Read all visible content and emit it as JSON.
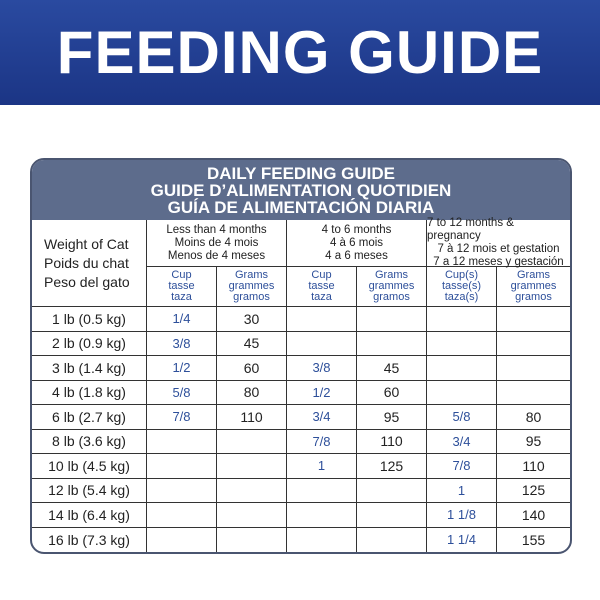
{
  "header": {
    "title": "FEEDING GUIDE"
  },
  "table": {
    "title": [
      "DAILY FEEDING GUIDE",
      "GUIDE D’ALIMENTATION QUOTIDIEN",
      "GUÍA DE ALIMENTACIÓN DIARIA"
    ],
    "weight_header": [
      "Weight of Cat",
      "Poids du chat",
      "Peso del gato"
    ],
    "groups": [
      {
        "label": [
          "Less than 4 months",
          "Moins de 4 mois",
          "Menos de 4 meses"
        ],
        "columns": [
          [
            "Cup",
            "tasse",
            "taza"
          ],
          [
            "Grams",
            "grammes",
            "gramos"
          ]
        ]
      },
      {
        "label": [
          "4 to 6 months",
          "4 à 6 mois",
          "4 a 6 meses"
        ],
        "columns": [
          [
            "Cup",
            "tasse",
            "taza"
          ],
          [
            "Grams",
            "grammes",
            "gramos"
          ]
        ]
      },
      {
        "label": [
          "7 to 12 months & pregnancy",
          "7 à 12 mois et gestation",
          "7 a 12 meses y gestación"
        ],
        "columns": [
          [
            "Cup(s)",
            "tasse(s)",
            "taza(s)"
          ],
          [
            "Grams",
            "grammes",
            "gramos"
          ]
        ]
      }
    ],
    "rows": [
      [
        "1 lb (0.5 kg)",
        "1/4",
        30,
        null,
        null,
        null,
        null
      ],
      [
        "2 lb (0.9 kg)",
        "3/8",
        45,
        null,
        null,
        null,
        null
      ],
      [
        "3 lb (1.4 kg)",
        "1/2",
        60,
        "3/8",
        45,
        null,
        null
      ],
      [
        "4 lb (1.8 kg)",
        "5/8",
        80,
        "1/2",
        60,
        null,
        null
      ],
      [
        "6 lb (2.7 kg)",
        "7/8",
        110,
        "3/4",
        95,
        "5/8",
        80
      ],
      [
        "8 lb (3.6 kg)",
        null,
        null,
        "7/8",
        110,
        "3/4",
        95
      ],
      [
        "10 lb (4.5 kg)",
        null,
        null,
        "1",
        125,
        "7/8",
        110
      ],
      [
        "12 lb (5.4 kg)",
        null,
        null,
        null,
        null,
        "1",
        125
      ],
      [
        "14 lb (6.4 kg)",
        null,
        null,
        null,
        null,
        "1 1/8",
        140
      ],
      [
        "16 lb (7.3 kg)",
        null,
        null,
        null,
        null,
        "1 1/4",
        155
      ]
    ]
  }
}
